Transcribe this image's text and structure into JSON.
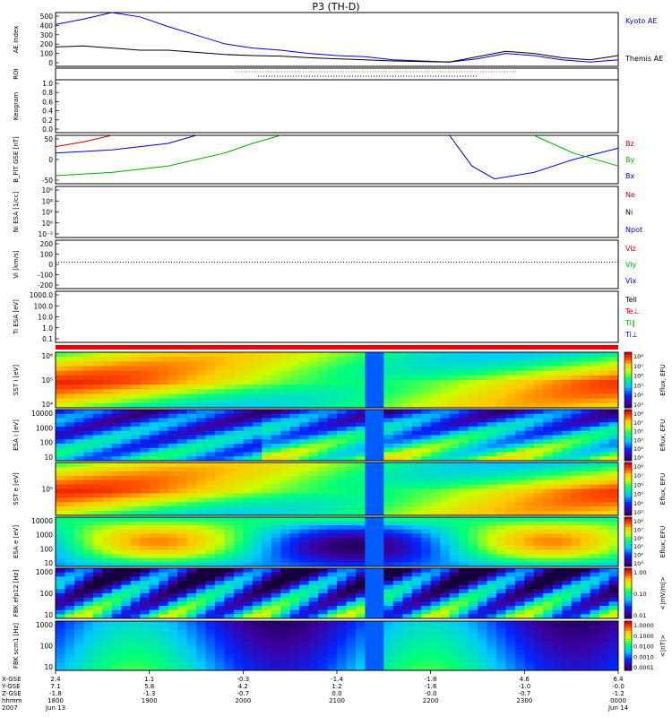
{
  "chart_data": {
    "type": "line",
    "title": "P3 (TH-D)",
    "panels": [
      {
        "key": "ae",
        "ylabel": "AE Index",
        "ylim": [
          0,
          500
        ],
        "yticks": [
          "500",
          "400",
          "300",
          "200",
          "100",
          "0"
        ],
        "legend": [
          {
            "text": "Kyoto AE",
            "color": "#0000cc"
          },
          {
            "text": "Themis AE",
            "color": "#000000"
          }
        ],
        "series": [
          {
            "name": "Kyoto AE",
            "color": "#0000cc",
            "x": [
              0,
              0.05,
              0.1,
              0.15,
              0.2,
              0.25,
              0.3,
              0.35,
              0.4,
              0.45,
              0.5,
              0.55,
              0.6,
              0.65,
              0.7,
              0.75,
              0.8,
              0.85,
              0.9,
              0.95,
              1
            ],
            "values": [
              390,
              440,
              500,
              460,
              370,
              290,
              210,
              170,
              150,
              120,
              100,
              90,
              60,
              50,
              40,
              70,
              120,
              100,
              60,
              40,
              60
            ]
          },
          {
            "name": "Themis AE",
            "color": "#000000",
            "x": [
              0,
              0.05,
              0.1,
              0.15,
              0.2,
              0.25,
              0.3,
              0.35,
              0.4,
              0.45,
              0.5,
              0.55,
              0.6,
              0.65,
              0.7,
              0.75,
              0.8,
              0.85,
              0.9,
              0.95,
              1
            ],
            "values": [
              180,
              190,
              170,
              150,
              150,
              130,
              110,
              100,
              95,
              80,
              70,
              60,
              50,
              45,
              40,
              90,
              140,
              120,
              80,
              60,
              100
            ]
          }
        ]
      },
      {
        "key": "roi",
        "ylabel": "ROI"
      },
      {
        "key": "keogram",
        "ylabel": "Keogram",
        "ylim": [
          0,
          1.0
        ],
        "yticks": [
          "1.0",
          "0.8",
          "0.6",
          "0.4",
          "0.2",
          "0.0"
        ]
      },
      {
        "key": "bfit",
        "ylabel": "B_FIT GSE [nT]",
        "ylim": [
          -75,
          75
        ],
        "yticks": [
          "50",
          "0",
          "-50"
        ],
        "legend": [
          {
            "text": "Bz",
            "color": "#cc0000"
          },
          {
            "text": "By",
            "color": "#00aa00"
          },
          {
            "text": "Bx",
            "color": "#0000cc"
          }
        ],
        "series": [
          {
            "name": "Bz",
            "color": "#cc0000",
            "x": [
              0,
              0.05,
              0.1
            ],
            "values": [
              40,
              55,
              75
            ]
          },
          {
            "name": "By",
            "color": "#00aa00",
            "x": [
              0,
              0.1,
              0.2,
              0.3,
              0.35,
              0.4
            ],
            "values": [
              -50,
              -40,
              -20,
              20,
              50,
              75
            ]
          },
          {
            "name": "Bx",
            "color": "#0000cc",
            "x": [
              0,
              0.1,
              0.2,
              0.25
            ],
            "values": [
              20,
              30,
              50,
              75
            ]
          },
          {
            "name": "Bx",
            "color": "#0000cc",
            "x": [
              0.7,
              0.74,
              0.78,
              0.85,
              0.92,
              1
            ],
            "values": [
              75,
              -20,
              -60,
              -40,
              0,
              35
            ]
          },
          {
            "name": "By",
            "color": "#00aa00",
            "x": [
              0.85,
              0.92,
              1
            ],
            "values": [
              75,
              20,
              -20
            ]
          }
        ]
      },
      {
        "key": "ni",
        "ylabel": "Ni ESA [1/cc]",
        "yticks": [
          "10^6",
          "10^4",
          "10^2",
          "10^0",
          "10^-2"
        ],
        "legend": [
          {
            "text": "Ne",
            "color": "#cc0000"
          },
          {
            "text": "Ni",
            "color": "#000000"
          },
          {
            "text": "Npot",
            "color": "#0000cc"
          }
        ]
      },
      {
        "key": "vi",
        "ylabel": "Vi [km/s]",
        "ylim": [
          -300,
          250
        ],
        "yticks": [
          "200",
          "100",
          "0",
          "-100",
          "-200"
        ],
        "legend": [
          {
            "text": "Viz",
            "color": "#cc0000"
          },
          {
            "text": "Viy",
            "color": "#00aa00"
          },
          {
            "text": "Vix",
            "color": "#0000cc"
          }
        ]
      },
      {
        "key": "ti",
        "ylabel": "Ti ESA [eV]",
        "yticks": [
          "1000.0",
          "100.0",
          "10.0",
          "1.0",
          "0.1"
        ],
        "legend": [
          {
            "text": "Tell",
            "color": "#000000"
          },
          {
            "text": "Te⊥",
            "color": "#cc0000"
          },
          {
            "text": "Ti∥",
            "color": "#00aa00"
          },
          {
            "text": "Ti⊥",
            "color": "#0000cc"
          }
        ]
      },
      {
        "key": "sst_i",
        "ylabel": "SST i [eV]",
        "yticks": [
          "10^6",
          "10^5",
          "10^4"
        ],
        "colorbar_label": "Eflux, EFU",
        "colorbar_ticks": [
          "10^8",
          "10^7",
          "10^6",
          "10^5",
          "10^4",
          "10^3"
        ]
      },
      {
        "key": "esa_i",
        "ylabel": "ESA i [eV]",
        "yticks": [
          "10000",
          "1000",
          "100",
          "10"
        ],
        "colorbar_label": "Eflux, EFU",
        "colorbar_ticks": [
          "10^8",
          "10^7",
          "10^6",
          "10^5",
          "10^4",
          "10^3"
        ]
      },
      {
        "key": "sst_e",
        "ylabel": "SST e [eV]",
        "yticks": [
          "10^5"
        ],
        "colorbar_label": "Eflux, EFU",
        "colorbar_ticks": [
          "10^8",
          "10^7",
          "10^6",
          "10^5",
          "10^4",
          "10^3"
        ]
      },
      {
        "key": "esa_e",
        "ylabel": "ESA e [eV]",
        "yticks": [
          "10000",
          "1000",
          "100",
          "10"
        ],
        "colorbar_label": "Eflux, EFU",
        "colorbar_ticks": [
          "10^8",
          "10^7",
          "10^6",
          "10^5",
          "10^4",
          "10^3"
        ]
      },
      {
        "key": "fbk_e",
        "ylabel": "FBK efp12 [Hz]",
        "yticks": [
          "1000",
          "100",
          "10"
        ],
        "colorbar_label": "<|mV/m|>",
        "colorbar_ticks": [
          "1.00",
          "0.10",
          "0.01"
        ]
      },
      {
        "key": "fbk_b",
        "ylabel": "FBK scm1 [Hz]",
        "yticks": [
          "1000",
          "100",
          "10"
        ],
        "colorbar_label": "<|nT|>",
        "colorbar_ticks": [
          "1.0000",
          "0.1000",
          "0.0100",
          "0.0010",
          "0.0001"
        ]
      }
    ],
    "x_axis": {
      "row_labels": [
        "X-GSE",
        "Y-GSE",
        "Z-GSE",
        "hhmm",
        "2007"
      ],
      "ticks": [
        {
          "x": "2.4",
          "y": "7.1",
          "z": "-1.8",
          "time": "1800",
          "date": "Jun 13"
        },
        {
          "x": "1.1",
          "y": "5.8",
          "z": "-1.3",
          "time": "1900",
          "date": ""
        },
        {
          "x": "-0.3",
          "y": "4.2",
          "z": "-0.7",
          "time": "2000",
          "date": ""
        },
        {
          "x": "-1.4",
          "y": "1.2",
          "z": "0.0",
          "time": "2100",
          "date": ""
        },
        {
          "x": "-1.8",
          "y": "-1.6",
          "z": "-0.0",
          "time": "2200",
          "date": ""
        },
        {
          "x": "4.6",
          "y": "-1.0",
          "z": "-0.7",
          "time": "2300",
          "date": ""
        },
        {
          "x": "6.4",
          "y": "-0.0",
          "z": "-1.2",
          "time": "0000",
          "date": "Jun 14"
        }
      ]
    }
  }
}
